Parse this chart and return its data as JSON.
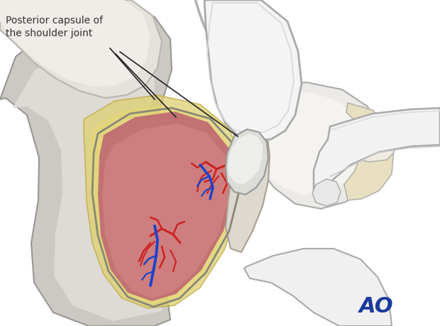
{
  "bg_color": "#ffffff",
  "label_text": "Posterior capsule of\nthe shoulder joint",
  "label_color": "#333333",
  "ao_text": "AO",
  "ao_color": "#1a3a9c",
  "label_fontsize": 10,
  "ao_fontsize": 22,
  "figsize": [
    6.2,
    4.59
  ],
  "dpi": 100
}
